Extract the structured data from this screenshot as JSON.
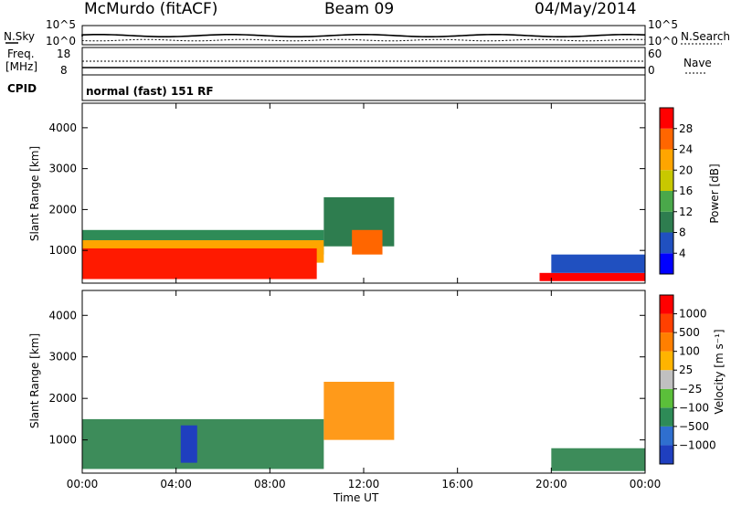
{
  "header": {
    "station": "McMurdo (fitACF)",
    "beam": "Beam 09",
    "date": "04/May/2014",
    "mode": "normal (fast) 151 RF"
  },
  "aux_panels": {
    "nsky_label": "N.Sky",
    "nsearch_label": "N.Search",
    "noise_ticks_left": [
      "10^5",
      "10^0"
    ],
    "noise_ticks_right": [
      "10^5",
      "10^0"
    ],
    "freq_label_1": "Freq.",
    "freq_label_2": "[MHz]",
    "freq_ticks": [
      "18",
      "8"
    ],
    "nave_label": "Nave",
    "nave_ticks": [
      "60",
      "0"
    ],
    "cpid_label": "CPID"
  },
  "chart_data": [
    {
      "type": "heatmap",
      "name": "power",
      "ylabel": "Slant Range [km]",
      "xlabel": "Time UT",
      "xticks": [
        "00:00",
        "04:00",
        "08:00",
        "12:00",
        "16:00",
        "20:00",
        "00:00"
      ],
      "yticks": [
        "1000",
        "2000",
        "3000",
        "4000"
      ],
      "ylim": [
        200,
        4600
      ],
      "colorbar": {
        "label": "Power [dB]",
        "ticks": [
          "4",
          "8",
          "12",
          "16",
          "20",
          "24",
          "28"
        ],
        "colors": [
          "#0000ff",
          "#2050c0",
          "#2e7d4f",
          "#4aa84a",
          "#c8c800",
          "#ffa500",
          "#ff6600",
          "#ff0000"
        ]
      }
    },
    {
      "type": "heatmap",
      "name": "velocity",
      "ylabel": "Slant Range [km]",
      "xlabel": "Time UT",
      "xticks": [
        "00:00",
        "04:00",
        "08:00",
        "12:00",
        "16:00",
        "20:00",
        "00:00"
      ],
      "yticks": [
        "1000",
        "2000",
        "3000",
        "4000"
      ],
      "ylim": [
        200,
        4600
      ],
      "colorbar": {
        "label": "Velocity [m s⁻¹]",
        "ticks": [
          "1000",
          "500",
          "100",
          "25",
          "−25",
          "−100",
          "−500",
          "−1000"
        ],
        "colors": [
          "#1f3fbf",
          "#2f6fcf",
          "#2e8b57",
          "#5bbf3a",
          "#c0c0c0",
          "#ffb400",
          "#ff7f00",
          "#ff4000",
          "#ff0000"
        ]
      }
    }
  ],
  "colors": {
    "green_dominant": "#3d8c5a",
    "red_power": "#ff1a00",
    "orange": "#ff9a1a"
  }
}
